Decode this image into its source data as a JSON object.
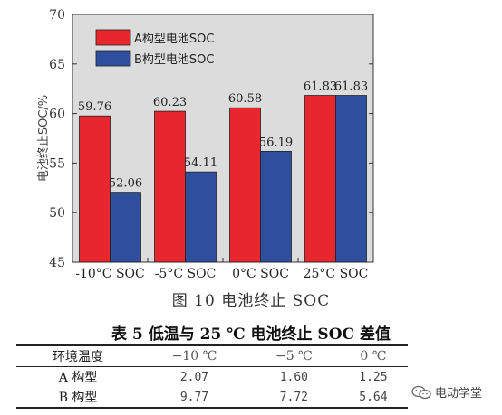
{
  "chart_data": {
    "type": "bar",
    "categories": [
      "-10°C SOC",
      "-5°C SOC",
      "0°C SOC",
      "25°C SOC"
    ],
    "series": [
      {
        "name": "A构型电池SOC",
        "values": [
          59.76,
          60.23,
          60.58,
          61.83
        ],
        "color": "#e8262d"
      },
      {
        "name": "B构型电池SOC",
        "values": [
          52.06,
          54.11,
          56.19,
          61.83
        ],
        "color": "#2d4f9e"
      }
    ],
    "data_labels_a": [
      "59.76",
      "60.23",
      "60.58",
      "61.83"
    ],
    "data_labels_b": [
      "52.06",
      "54.11",
      "56.19",
      "61.83"
    ],
    "ylabel": "电池终止SOC/%",
    "ylim": [
      45,
      70
    ],
    "yticks": [
      "45",
      "50",
      "55",
      "60",
      "65",
      "70"
    ],
    "legend_position": "top-left",
    "plot_background": "#dcdcdc",
    "grid": false
  },
  "figure_caption": "图 10   电池终止 SOC",
  "table": {
    "title": "表 5   低温与 25 ℃ 电池终止 SOC 差值",
    "header": [
      "环境温度",
      "−10 ℃",
      "−5 ℃",
      "0 ℃"
    ],
    "rows": [
      [
        "A 构型",
        "2.07",
        "1.60",
        "1.25"
      ],
      [
        "B 构型",
        "9.77",
        "7.72",
        "5.64"
      ]
    ]
  },
  "watermark": {
    "text": "电动学堂",
    "icon": "wechat-icon"
  }
}
